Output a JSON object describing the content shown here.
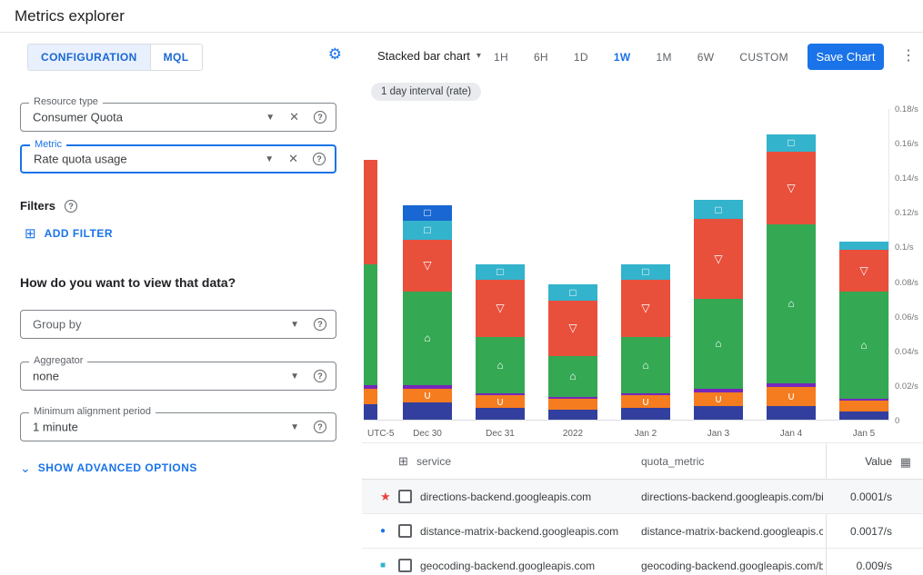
{
  "header": {
    "title": "Metrics explorer"
  },
  "config_panel": {
    "tabs": [
      {
        "label": "CONFIGURATION"
      },
      {
        "label": "MQL"
      }
    ],
    "resource_type": {
      "label": "Resource type",
      "value": "Consumer Quota"
    },
    "metric": {
      "label": "Metric",
      "value": "Rate quota usage"
    },
    "filters_label": "Filters",
    "add_filter_label": "ADD FILTER",
    "view_question": "How do you want to view that data?",
    "group_by": {
      "placeholder": "Group by"
    },
    "aggregator": {
      "label": "Aggregator",
      "value": "none"
    },
    "alignment": {
      "label": "Minimum alignment period",
      "value": "1 minute"
    },
    "advanced_label": "SHOW ADVANCED OPTIONS"
  },
  "toolbar": {
    "chart_type": "Stacked bar chart",
    "ranges": [
      "1H",
      "6H",
      "1D",
      "1W",
      "1M",
      "6W",
      "CUSTOM"
    ],
    "active_range": "1W",
    "save_label": "Save Chart"
  },
  "interval_chip": "1 day interval (rate)",
  "chart_data": {
    "type": "bar",
    "stacked": true,
    "title": "",
    "unit": "/s",
    "ylim": [
      0,
      0.18
    ],
    "grid": false,
    "categories": [
      "Dec 30",
      "Dec 31",
      "2022",
      "Jan 2",
      "Jan 3",
      "Jan 4",
      "Jan 5"
    ],
    "x_axis_labels": [
      "UTC-5",
      "Dec 30",
      "Dec 31",
      "2022",
      "Jan 2",
      "Jan 3",
      "Jan 4",
      "Jan 5"
    ],
    "edge_bar_note": "partial bar cut off at left chart edge",
    "series": [
      {
        "name": "stack-navy",
        "color": "#333f9e",
        "marker": "",
        "values": [
          0.01,
          0.007,
          0.006,
          0.007,
          0.008,
          0.008,
          0.005
        ],
        "edge": 0.009
      },
      {
        "name": "stack-orange",
        "color": "#f57c1f",
        "marker": "∪",
        "values": [
          0.008,
          0.007,
          0.006,
          0.007,
          0.008,
          0.011,
          0.006
        ],
        "edge": 0.009
      },
      {
        "name": "stack-purple",
        "color": "#7627bb",
        "marker": "",
        "values": [
          0.002,
          0.001,
          0.001,
          0.001,
          0.002,
          0.002,
          0.001
        ],
        "edge": 0.002
      },
      {
        "name": "stack-green",
        "color": "#34a853",
        "marker": "⌂",
        "values": [
          0.054,
          0.033,
          0.024,
          0.033,
          0.052,
          0.092,
          0.062
        ],
        "edge": 0.07
      },
      {
        "name": "stack-red",
        "color": "#e8503c",
        "marker": "▽",
        "values": [
          0.03,
          0.033,
          0.032,
          0.033,
          0.046,
          0.042,
          0.024
        ],
        "edge": 0.06
      },
      {
        "name": "stack-teal",
        "color": "#33b3cc",
        "marker": "□",
        "values": [
          0.011,
          0.009,
          0.009,
          0.009,
          0.011,
          0.01,
          0.005
        ],
        "edge": 0
      },
      {
        "name": "stack-blue",
        "color": "#1967d2",
        "marker": "□",
        "values": [
          0.009,
          0,
          0,
          0,
          0,
          0,
          0
        ],
        "edge": 0
      }
    ],
    "y_ticks": [
      {
        "v": 0.18,
        "label": "0.18/s"
      },
      {
        "v": 0.16,
        "label": "0.16/s"
      },
      {
        "v": 0.14,
        "label": "0.14/s"
      },
      {
        "v": 0.12,
        "label": "0.12/s"
      },
      {
        "v": 0.1,
        "label": "0.1/s"
      },
      {
        "v": 0.08,
        "label": "0.08/s"
      },
      {
        "v": 0.06,
        "label": "0.06/s"
      },
      {
        "v": 0.04,
        "label": "0.04/s"
      },
      {
        "v": 0.02,
        "label": "0.02/s"
      },
      {
        "v": 0,
        "label": "0"
      }
    ]
  },
  "table": {
    "columns": [
      "service",
      "quota_metric",
      "Value"
    ],
    "rows": [
      {
        "marker_glyph": "★",
        "marker_color": "#e8433c",
        "service": "directions-backend.googleapis.com",
        "quota_metric": "directions-backend.googleapis.com/billabl",
        "value": "0.0001/s"
      },
      {
        "marker_glyph": "●",
        "marker_color": "#1a73e8",
        "service": "distance-matrix-backend.googleapis.com",
        "quota_metric": "distance-matrix-backend.googleapis.com/l",
        "value": "0.0017/s"
      },
      {
        "marker_glyph": "■",
        "marker_color": "#33b3cc",
        "service": "geocoding-backend.googleapis.com",
        "quota_metric": "geocoding-backend.googleapis.com/billab",
        "value": "0.009/s"
      }
    ]
  },
  "colors": {
    "accent_blue": "#1a73e8",
    "tab_active_bg": "#e8f0fe"
  }
}
